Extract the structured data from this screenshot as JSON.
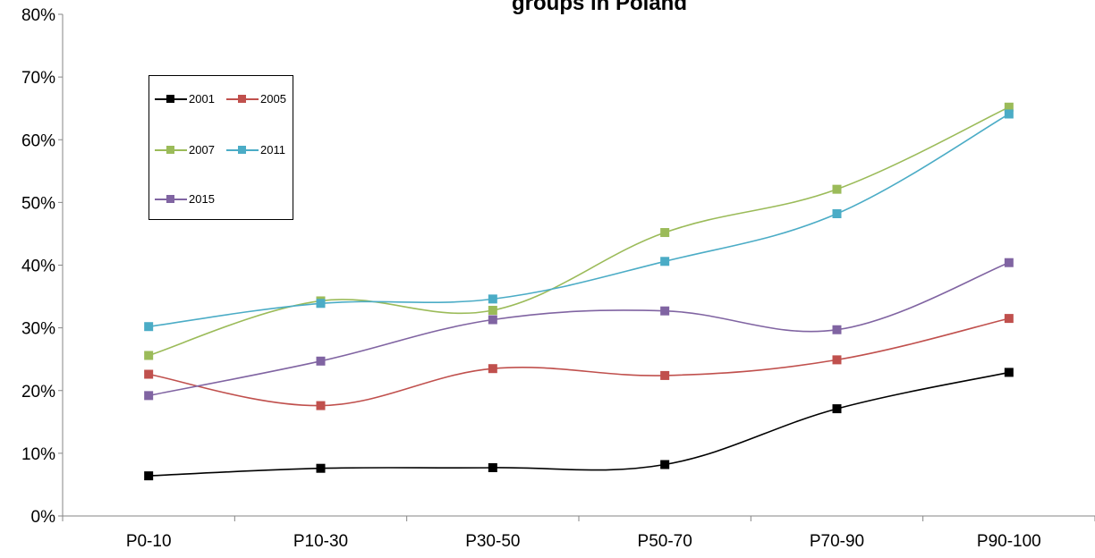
{
  "chart_data": {
    "type": "line",
    "title": "groups in Poland",
    "categories": [
      "P0-10",
      "P10-30",
      "P30-50",
      "P50-70",
      "P70-90",
      "P90-100"
    ],
    "ylim": [
      0,
      80
    ],
    "yticks": [
      "0%",
      "10%",
      "20%",
      "30%",
      "40%",
      "50%",
      "60%",
      "70%",
      "80%"
    ],
    "grid": false,
    "legend_position": "top-left",
    "series": [
      {
        "name": "2001",
        "color": "#000000",
        "values": [
          6.4,
          7.6,
          7.7,
          8.2,
          17.1,
          22.9
        ]
      },
      {
        "name": "2005",
        "color": "#c0504d",
        "values": [
          22.6,
          17.6,
          23.5,
          22.4,
          24.9,
          31.5
        ]
      },
      {
        "name": "2007",
        "color": "#9bbb59",
        "values": [
          25.6,
          34.3,
          32.8,
          45.2,
          52.1,
          65.2
        ]
      },
      {
        "name": "2011",
        "color": "#4bacc6",
        "values": [
          30.2,
          33.9,
          34.6,
          40.6,
          48.2,
          64.1
        ]
      },
      {
        "name": "2015",
        "color": "#8064a2",
        "values": [
          19.2,
          24.7,
          31.3,
          32.7,
          29.7,
          40.4
        ]
      }
    ]
  }
}
